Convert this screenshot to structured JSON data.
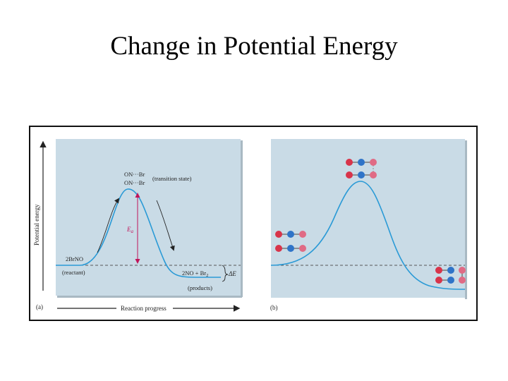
{
  "slide": {
    "title": "Change in Potential Energy"
  },
  "panel_a": {
    "label": "(a)",
    "y_axis_label": "Potential energy",
    "x_axis_label": "Reaction progress",
    "transition_state_top": "ON···Br",
    "transition_state_bottom": "ON···Br",
    "transition_state_note": "(transition state)",
    "reactant_formula": "2BrNO",
    "reactant_note": "(reactant)",
    "product_formula": "2NO + Br",
    "product_subscript": "2",
    "product_note": "(products)",
    "activation_energy": "E",
    "activation_energy_sub": "a",
    "energy_change": "ΔE"
  },
  "panel_b": {
    "label": "(b)"
  },
  "colors": {
    "plot_background": "#c9dbe6",
    "curve": "#2a9ad6",
    "activation_arrow": "#c0145a",
    "oxygen_atom": "#d8344a",
    "nitrogen_atom": "#2f74c8",
    "bromine_atom": "#e06b85"
  }
}
